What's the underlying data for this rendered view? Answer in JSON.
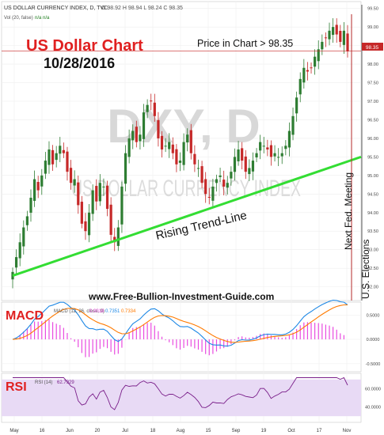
{
  "header": {
    "symbol_line": "US DOLLAR CURRENCY INDEX, D, TVC",
    "ohlc": "O 98.92  H 98.94  L 98.24  C 98.35",
    "vol_line": "Vol (20, false)",
    "vol_value": "n/a  n/a"
  },
  "annotations": {
    "title": "US Dollar Chart",
    "date": "10/28/2016",
    "price_note": "Price in Chart > 98.35",
    "trend_label": "Rising Trend-Line",
    "watermark_symbol": "DXY, D",
    "watermark_name": "US DOLLAR CURRENCY INDEX",
    "website": "www.Free-Bullion-Investment-Guide.com",
    "fed_label": "Next Fed. Meeting",
    "elections_label": "U.S. Elections"
  },
  "price_badge": "98.35",
  "macd": {
    "label": "MACD",
    "values": [
      "0.0018",
      "0.7351",
      "0.7334"
    ],
    "colors": [
      "#e94be0",
      "#1e88e5",
      "#ff7a00"
    ],
    "ticks": [
      "0.5000",
      "0.0000",
      "-0.5000"
    ]
  },
  "rsi": {
    "label": "RSI",
    "value": "62.7929",
    "ticks": [
      "60.0000",
      "40.0000"
    ]
  },
  "colors": {
    "up": "#2e7d32",
    "down": "#c62828",
    "trend": "#33dd33",
    "title_red": "#e02020",
    "vline": "#b52a2a",
    "rsi_fill": "#e8daf5",
    "rsi_line": "#7a1f8a"
  },
  "chart_data": {
    "type": "candlestick",
    "price_axis": [
      "99.50",
      "99.00",
      "98.50",
      "98.00",
      "97.50",
      "97.00",
      "96.50",
      "96.00",
      "95.50",
      "95.00",
      "94.50",
      "94.00",
      "93.50",
      "93.00",
      "92.50",
      "92.00"
    ],
    "ylim": [
      91.8,
      99.6
    ],
    "x_labels": [
      "May",
      "16",
      "Jun",
      "20",
      "Jul",
      "18",
      "Aug",
      "15",
      "Sep",
      "19",
      "Oct",
      "17",
      "Nov"
    ],
    "trend_line": {
      "start": [
        0,
        92.3
      ],
      "end": [
        1,
        95.5
      ]
    },
    "series_close": [
      92.4,
      92.8,
      93.2,
      93.6,
      93.9,
      94.4,
      94.9,
      94.6,
      95.0,
      95.4,
      95.7,
      95.3,
      95.6,
      95.8,
      95.6,
      95.1,
      94.8,
      94.9,
      94.2,
      93.7,
      93.5,
      94.0,
      94.6,
      94.3,
      94.8,
      94.7,
      94.1,
      93.4,
      93.2,
      93.6,
      94.7,
      95.6,
      96.0,
      96.2,
      95.9,
      96.1,
      96.7,
      96.9,
      97.0,
      96.6,
      96.0,
      95.7,
      95.8,
      95.9,
      95.6,
      95.3,
      95.4,
      95.9,
      96.1,
      95.6,
      95.3,
      95.2,
      94.8,
      94.5,
      94.4,
      94.7,
      94.9,
      95.0,
      94.7,
      94.8,
      95.1,
      95.5,
      95.7,
      95.4,
      95.1,
      95.2,
      95.4,
      95.6,
      95.9,
      95.8,
      95.7,
      95.5,
      95.6,
      95.5,
      95.6,
      95.8,
      96.2,
      96.6,
      97.1,
      97.6,
      97.9,
      97.8,
      97.9,
      98.2,
      98.4,
      98.6,
      98.7,
      98.9,
      99.0,
      98.8,
      98.6,
      98.9,
      98.35
    ],
    "rsi_range": [
      25,
      75
    ],
    "macd_range": [
      -0.6,
      0.7
    ],
    "events": [
      "Next Fed. Meeting",
      "U.S. Elections"
    ]
  }
}
